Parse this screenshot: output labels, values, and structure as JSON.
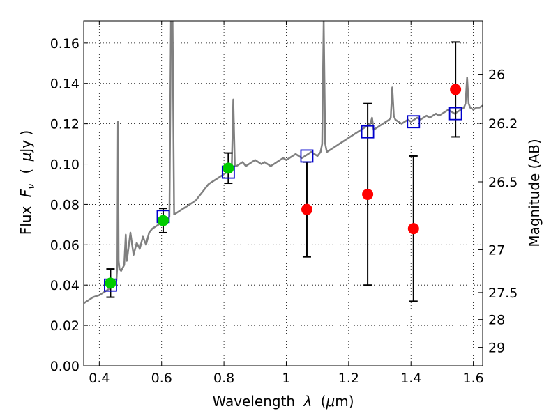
{
  "chart_data": {
    "type": "scatter",
    "xlabel_text": "Wavelength",
    "xlabel_symbol": "λ",
    "xlabel_unit_open": "(",
    "xlabel_unit_mu": "μ",
    "xlabel_unit_rest": "m)",
    "ylabel_text": "Flux",
    "ylabel_symbol": "F",
    "ylabel_subscript": "ν",
    "ylabel_unit_open": "(",
    "ylabel_unit_mu": "μ",
    "ylabel_unit_rest": "Jy )",
    "y2label": "Magnitude (AB)",
    "xlim": [
      0.35,
      1.63
    ],
    "ylim": [
      0.0,
      0.171
    ],
    "grid": true,
    "x_ticks": [
      {
        "value": 0.4,
        "label": "0.4"
      },
      {
        "value": 0.6,
        "label": "0.6"
      },
      {
        "value": 0.8,
        "label": "0.8"
      },
      {
        "value": 1.0,
        "label": "1"
      },
      {
        "value": 1.2,
        "label": "1.2"
      },
      {
        "value": 1.4,
        "label": "1.4"
      },
      {
        "value": 1.6,
        "label": "1.6"
      }
    ],
    "y_ticks": [
      {
        "value": 0.0,
        "label": "0.00"
      },
      {
        "value": 0.02,
        "label": "0.02"
      },
      {
        "value": 0.04,
        "label": "0.04"
      },
      {
        "value": 0.06,
        "label": "0.06"
      },
      {
        "value": 0.08,
        "label": "0.08"
      },
      {
        "value": 0.1,
        "label": "0.10"
      },
      {
        "value": 0.12,
        "label": "0.12"
      },
      {
        "value": 0.14,
        "label": "0.14"
      },
      {
        "value": 0.16,
        "label": "0.16"
      }
    ],
    "y2_ticks": [
      {
        "mag": 26,
        "label": "26"
      },
      {
        "mag": 26.2,
        "label": "26.2"
      },
      {
        "mag": 26.5,
        "label": "26.5"
      },
      {
        "mag": 27,
        "label": "27"
      },
      {
        "mag": 27.5,
        "label": "27.5"
      },
      {
        "mag": 28,
        "label": "28"
      },
      {
        "mag": 29,
        "label": "29"
      }
    ],
    "colors": {
      "spectrum": "#808080",
      "green_points": "#00cc00",
      "red_points": "#ff0000",
      "model_squares": "#0000cc",
      "error_bars": "#000000"
    },
    "series": [
      {
        "kind": "line",
        "points": [
          [
            0.35,
            0.031
          ],
          [
            0.36,
            0.032
          ],
          [
            0.37,
            0.033
          ],
          [
            0.38,
            0.034
          ],
          [
            0.39,
            0.0345
          ],
          [
            0.4,
            0.035
          ],
          [
            0.41,
            0.036
          ],
          [
            0.42,
            0.037
          ],
          [
            0.43,
            0.038
          ],
          [
            0.44,
            0.04
          ],
          [
            0.45,
            0.041
          ],
          [
            0.455,
            0.042
          ],
          [
            0.458,
            0.05
          ],
          [
            0.46,
            0.121
          ],
          [
            0.462,
            0.052
          ],
          [
            0.465,
            0.048
          ],
          [
            0.47,
            0.047
          ],
          [
            0.48,
            0.05
          ],
          [
            0.485,
            0.065
          ],
          [
            0.488,
            0.052
          ],
          [
            0.49,
            0.054
          ],
          [
            0.5,
            0.066
          ],
          [
            0.51,
            0.055
          ],
          [
            0.52,
            0.061
          ],
          [
            0.53,
            0.058
          ],
          [
            0.54,
            0.064
          ],
          [
            0.55,
            0.06
          ],
          [
            0.56,
            0.066
          ],
          [
            0.57,
            0.068
          ],
          [
            0.58,
            0.069
          ],
          [
            0.59,
            0.07
          ],
          [
            0.6,
            0.071
          ],
          [
            0.61,
            0.072
          ],
          [
            0.62,
            0.073
          ],
          [
            0.625,
            0.074
          ],
          [
            0.63,
            0.171
          ],
          [
            0.635,
            0.171
          ],
          [
            0.64,
            0.075
          ],
          [
            0.65,
            0.076
          ],
          [
            0.66,
            0.077
          ],
          [
            0.67,
            0.078
          ],
          [
            0.68,
            0.079
          ],
          [
            0.69,
            0.08
          ],
          [
            0.7,
            0.081
          ],
          [
            0.71,
            0.082
          ],
          [
            0.72,
            0.084
          ],
          [
            0.73,
            0.086
          ],
          [
            0.74,
            0.088
          ],
          [
            0.75,
            0.09
          ],
          [
            0.76,
            0.091
          ],
          [
            0.77,
            0.092
          ],
          [
            0.78,
            0.093
          ],
          [
            0.79,
            0.094
          ],
          [
            0.8,
            0.095
          ],
          [
            0.81,
            0.096
          ],
          [
            0.82,
            0.097
          ],
          [
            0.825,
            0.098
          ],
          [
            0.83,
            0.132
          ],
          [
            0.835,
            0.099
          ],
          [
            0.84,
            0.099
          ],
          [
            0.85,
            0.1
          ],
          [
            0.86,
            0.101
          ],
          [
            0.87,
            0.099
          ],
          [
            0.88,
            0.1
          ],
          [
            0.89,
            0.101
          ],
          [
            0.9,
            0.102
          ],
          [
            0.91,
            0.101
          ],
          [
            0.92,
            0.1
          ],
          [
            0.93,
            0.101
          ],
          [
            0.94,
            0.1
          ],
          [
            0.95,
            0.099
          ],
          [
            0.96,
            0.1
          ],
          [
            0.97,
            0.101
          ],
          [
            0.98,
            0.102
          ],
          [
            0.99,
            0.103
          ],
          [
            1.0,
            0.102
          ],
          [
            1.01,
            0.103
          ],
          [
            1.02,
            0.104
          ],
          [
            1.03,
            0.105
          ],
          [
            1.04,
            0.104
          ],
          [
            1.05,
            0.103
          ],
          [
            1.06,
            0.104
          ],
          [
            1.07,
            0.105
          ],
          [
            1.08,
            0.106
          ],
          [
            1.09,
            0.105
          ],
          [
            1.1,
            0.104
          ],
          [
            1.11,
            0.106
          ],
          [
            1.115,
            0.11
          ],
          [
            1.12,
            0.171
          ],
          [
            1.125,
            0.11
          ],
          [
            1.13,
            0.106
          ],
          [
            1.14,
            0.107
          ],
          [
            1.15,
            0.108
          ],
          [
            1.16,
            0.109
          ],
          [
            1.17,
            0.11
          ],
          [
            1.18,
            0.111
          ],
          [
            1.19,
            0.112
          ],
          [
            1.2,
            0.113
          ],
          [
            1.21,
            0.114
          ],
          [
            1.22,
            0.115
          ],
          [
            1.23,
            0.116
          ],
          [
            1.24,
            0.117
          ],
          [
            1.25,
            0.118
          ],
          [
            1.26,
            0.119
          ],
          [
            1.27,
            0.12
          ],
          [
            1.275,
            0.123
          ],
          [
            1.28,
            0.117
          ],
          [
            1.29,
            0.118
          ],
          [
            1.3,
            0.119
          ],
          [
            1.31,
            0.12
          ],
          [
            1.32,
            0.121
          ],
          [
            1.33,
            0.122
          ],
          [
            1.335,
            0.123
          ],
          [
            1.34,
            0.138
          ],
          [
            1.345,
            0.124
          ],
          [
            1.35,
            0.122
          ],
          [
            1.36,
            0.121
          ],
          [
            1.37,
            0.12
          ],
          [
            1.38,
            0.121
          ],
          [
            1.39,
            0.122
          ],
          [
            1.4,
            0.121
          ],
          [
            1.41,
            0.122
          ],
          [
            1.42,
            0.123
          ],
          [
            1.43,
            0.122
          ],
          [
            1.44,
            0.123
          ],
          [
            1.45,
            0.124
          ],
          [
            1.46,
            0.123
          ],
          [
            1.47,
            0.124
          ],
          [
            1.48,
            0.125
          ],
          [
            1.49,
            0.124
          ],
          [
            1.5,
            0.125
          ],
          [
            1.51,
            0.126
          ],
          [
            1.52,
            0.127
          ],
          [
            1.53,
            0.126
          ],
          [
            1.54,
            0.125
          ],
          [
            1.55,
            0.126
          ],
          [
            1.56,
            0.127
          ],
          [
            1.57,
            0.128
          ],
          [
            1.575,
            0.13
          ],
          [
            1.58,
            0.143
          ],
          [
            1.585,
            0.13
          ],
          [
            1.59,
            0.128
          ],
          [
            1.6,
            0.127
          ],
          [
            1.61,
            0.128
          ],
          [
            1.62,
            0.128
          ],
          [
            1.63,
            0.129
          ]
        ]
      },
      {
        "kind": "points",
        "marker": "circle",
        "color_key": "green_points",
        "points": [
          {
            "x": 0.436,
            "y": 0.041,
            "err": 0.007
          },
          {
            "x": 0.605,
            "y": 0.072,
            "err": 0.006
          },
          {
            "x": 0.814,
            "y": 0.098,
            "err": 0.0075
          }
        ]
      },
      {
        "kind": "points",
        "marker": "circle",
        "color_key": "red_points",
        "points": [
          {
            "x": 1.066,
            "y": 0.0775,
            "err": 0.0235
          },
          {
            "x": 1.261,
            "y": 0.085,
            "err": 0.045
          },
          {
            "x": 1.408,
            "y": 0.068,
            "err": 0.036
          },
          {
            "x": 1.543,
            "y": 0.137,
            "err": 0.0235
          }
        ]
      },
      {
        "kind": "points",
        "marker": "square",
        "color_key": "model_squares",
        "points": [
          {
            "x": 0.436,
            "y": 0.04
          },
          {
            "x": 0.605,
            "y": 0.074
          },
          {
            "x": 0.814,
            "y": 0.096
          },
          {
            "x": 1.066,
            "y": 0.104
          },
          {
            "x": 1.261,
            "y": 0.116
          },
          {
            "x": 1.408,
            "y": 0.121
          },
          {
            "x": 1.543,
            "y": 0.125
          }
        ]
      }
    ]
  }
}
